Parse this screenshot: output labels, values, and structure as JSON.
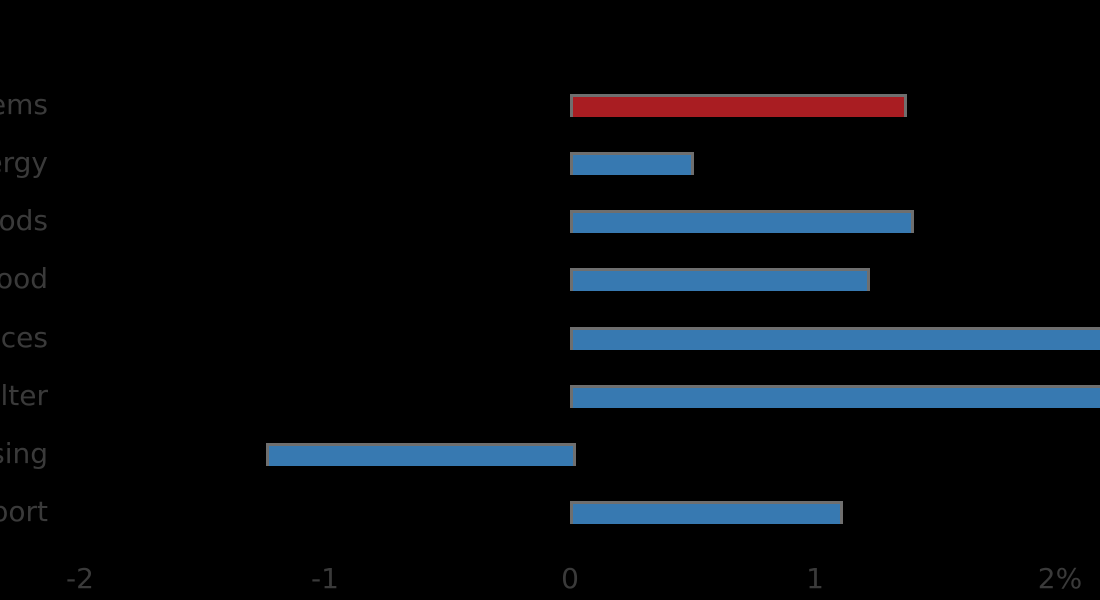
{
  "colors": {
    "background": "#000000",
    "bar_blue": "#3779b1",
    "bar_red": "#a91d22",
    "bar_outline": "#6f6f6f",
    "text": "#3a3a3a"
  },
  "chart_data": {
    "type": "bar",
    "orientation": "horizontal",
    "title": "",
    "xlabel": "",
    "ylabel": "",
    "categories": [
      "items",
      "ergy",
      "oods",
      "ood",
      "ices",
      "lter",
      "using",
      "port"
    ],
    "values": [
      1.35,
      0.48,
      1.38,
      1.2,
      2.2,
      2.2,
      -1.24,
      1.09
    ],
    "highlight_index": 0,
    "clipped_right_indices": [
      4,
      5
    ],
    "x_ticks": [
      "-2",
      "-1",
      "0",
      "1",
      "2%"
    ],
    "x_tick_values": [
      -2,
      -1,
      0,
      1,
      2
    ],
    "xlim": [
      -2,
      2.17
    ],
    "grid": "off",
    "legend": "none",
    "notes": "category labels are right-aligned and clipped by the left image edge; bars 5 and 6 run off the right image edge"
  }
}
